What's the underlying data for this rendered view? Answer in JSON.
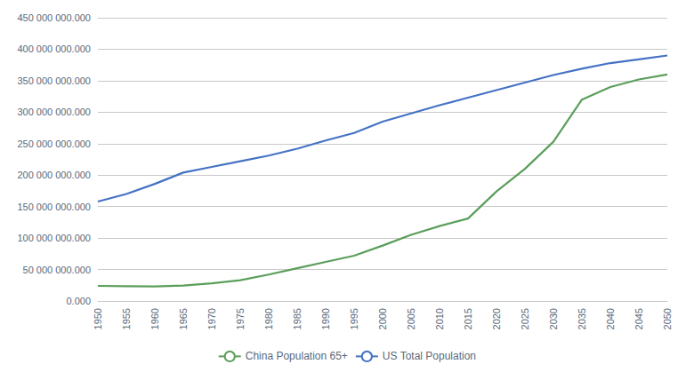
{
  "chart_data": {
    "type": "line",
    "x": [
      1950,
      1955,
      1960,
      1965,
      1970,
      1975,
      1980,
      1985,
      1990,
      1995,
      2000,
      2005,
      2010,
      2015,
      2020,
      2025,
      2030,
      2035,
      2040,
      2045,
      2050
    ],
    "series": [
      {
        "name": "China Population 65+",
        "color": "#5B9E5B",
        "values": [
          24000000,
          23500000,
          23000000,
          24500000,
          28000000,
          33000000,
          42000000,
          52000000,
          62000000,
          72000000,
          88000000,
          105000000,
          119000000,
          131000000,
          174000000,
          210000000,
          253000000,
          320000000,
          340000000,
          352000000,
          360000000
        ]
      },
      {
        "name": "US Total Population",
        "color": "#4472C4",
        "values": [
          158000000,
          170000000,
          186000000,
          204000000,
          213000000,
          222000000,
          231000000,
          242000000,
          255000000,
          267000000,
          285000000,
          298000000,
          311000000,
          323000000,
          335000000,
          347000000,
          359000000,
          369000000,
          378000000,
          384000000,
          390000000
        ]
      }
    ],
    "xlim": [
      1950,
      2050
    ],
    "xticks": [
      1950,
      1955,
      1960,
      1965,
      1970,
      1975,
      1980,
      1985,
      1990,
      1995,
      2000,
      2005,
      2010,
      2015,
      2020,
      2025,
      2030,
      2035,
      2040,
      2045,
      2050
    ],
    "ylim": [
      0,
      450000000
    ],
    "yticks": [
      {
        "value": 0,
        "label": "0.000"
      },
      {
        "value": 50000000,
        "label": "50 000 000.000"
      },
      {
        "value": 100000000,
        "label": "100 000 000.000"
      },
      {
        "value": 150000000,
        "label": "150 000 000.000"
      },
      {
        "value": 200000000,
        "label": "200 000 000.000"
      },
      {
        "value": 250000000,
        "label": "250 000 000.000"
      },
      {
        "value": 300000000,
        "label": "300 000 000.000"
      },
      {
        "value": 350000000,
        "label": "350 000 000.000"
      },
      {
        "value": 400000000,
        "label": "400 000 000.000"
      },
      {
        "value": 450000000,
        "label": "450 000 000.000"
      }
    ],
    "grid": true,
    "legend": "bottom"
  }
}
